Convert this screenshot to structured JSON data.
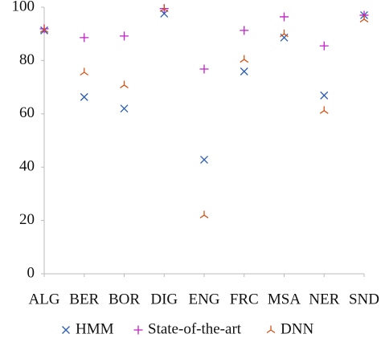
{
  "chart_data": {
    "type": "scatter",
    "categories": [
      "ALG",
      "BER",
      "BOR",
      "DIG",
      "ENG",
      "FRC",
      "MSA",
      "NER",
      "SND"
    ],
    "series": [
      {
        "name": "HMM",
        "color": "#2a5db0",
        "marker": "x",
        "values": [
          91.3,
          66.3,
          62,
          97.6,
          42.8,
          75.9,
          88.6,
          66.9,
          97
        ]
      },
      {
        "name": "State-of-the-art",
        "color": "#c21fc9",
        "marker": "+",
        "values": [
          91.9,
          88.6,
          89.2,
          99.5,
          76.8,
          91.3,
          96.4,
          85.5,
          97
        ]
      },
      {
        "name": "DNN",
        "color": "#d4541a",
        "marker": "tri",
        "values": [
          91.6,
          75.6,
          70.8,
          99.4,
          22,
          80.4,
          90,
          61.2,
          95.5
        ]
      }
    ],
    "ylim": [
      0,
      100
    ],
    "yticks": [
      0,
      20,
      40,
      60,
      80,
      100
    ],
    "legend": "bottom"
  }
}
